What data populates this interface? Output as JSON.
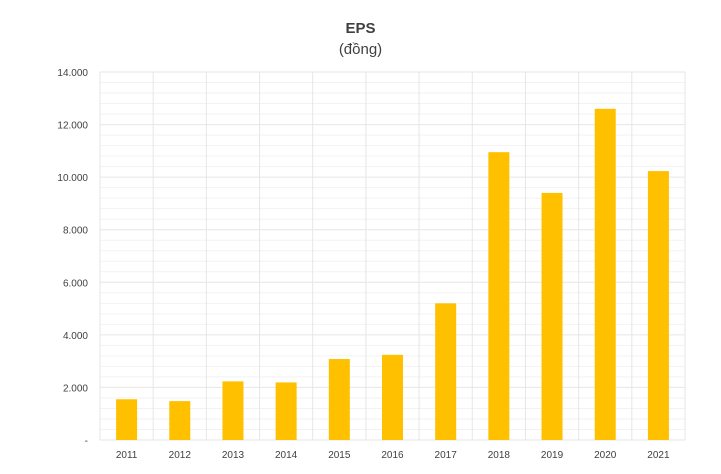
{
  "chart_data": {
    "type": "bar",
    "title": "EPS",
    "subtitle": "(đồng)",
    "xlabel": "",
    "ylabel": "",
    "categories": [
      "2011",
      "2012",
      "2013",
      "2014",
      "2015",
      "2016",
      "2017",
      "2018",
      "2019",
      "2020",
      "2021"
    ],
    "values": [
      1550,
      1480,
      2230,
      2190,
      3080,
      3240,
      5200,
      10950,
      9400,
      12600,
      10230
    ],
    "ylim": [
      0,
      14000
    ],
    "yticks": [
      0,
      2000,
      4000,
      6000,
      8000,
      10000,
      12000,
      14000
    ],
    "ytick_labels": [
      "-",
      "2.000",
      "4.000",
      "6.000",
      "8.000",
      "10.000",
      "12.000",
      "14.000"
    ],
    "grid": true,
    "bar_color": "#FFC000",
    "grid_color": "#E6E6E6",
    "text_color": "#404040"
  }
}
